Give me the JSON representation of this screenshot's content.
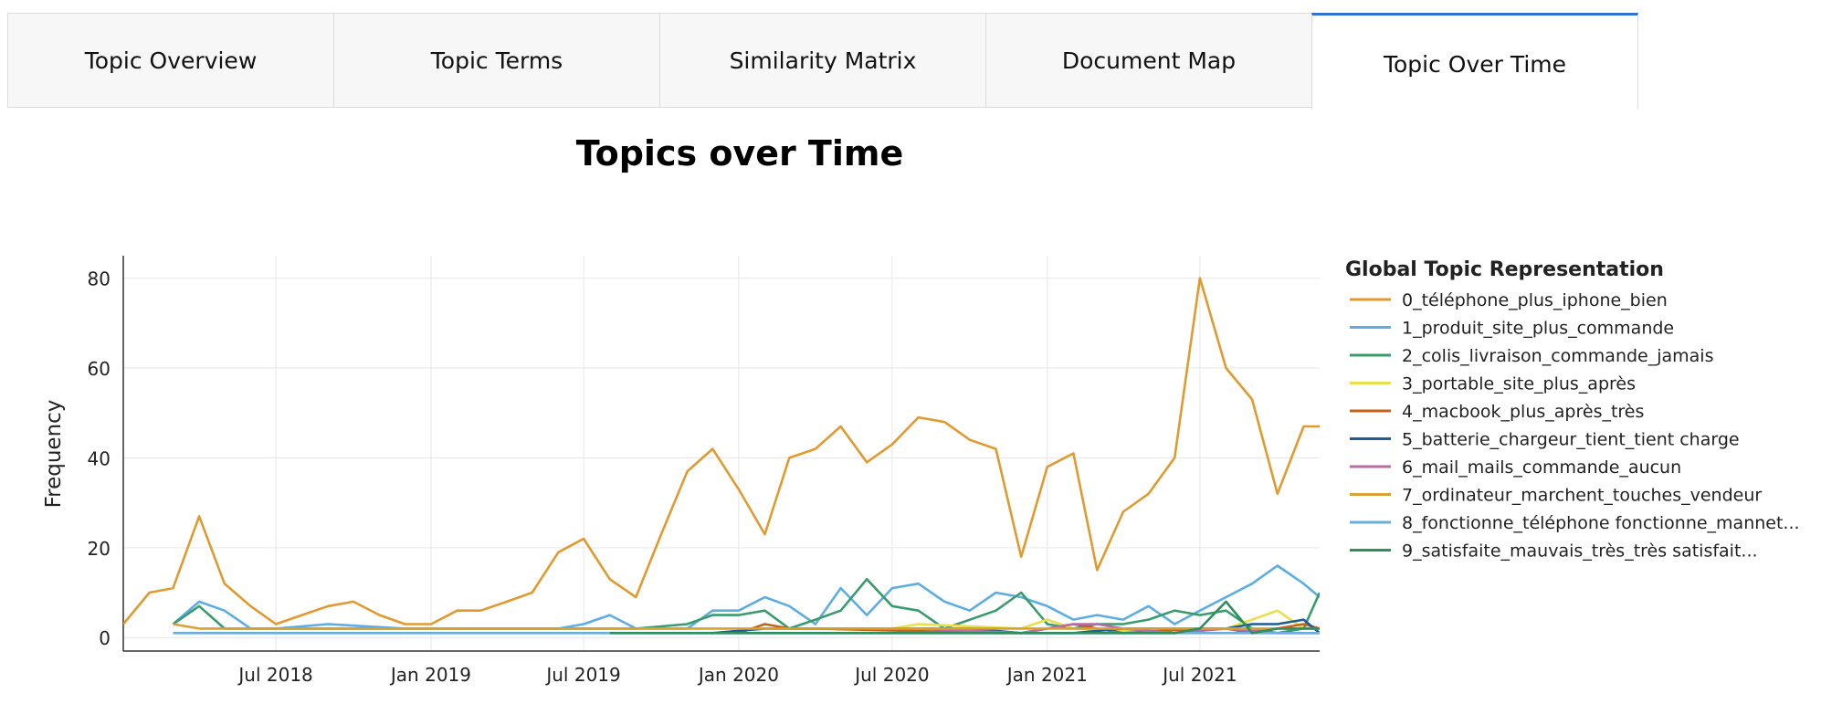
{
  "tabs": [
    {
      "label": "Topic Overview"
    },
    {
      "label": "Topic Terms"
    },
    {
      "label": "Similarity Matrix"
    },
    {
      "label": "Document Map"
    },
    {
      "label": "Topic Over Time"
    }
  ],
  "page_title": "Topics over Time",
  "chart_data": {
    "type": "line",
    "title": "Topics over Time",
    "xlabel": "",
    "ylabel": "Frequency",
    "x_range": [
      "2018-01-01",
      "2021-11-20"
    ],
    "ylim": [
      -3,
      85
    ],
    "grid": true,
    "y_ticks": [
      0,
      20,
      40,
      60,
      80
    ],
    "x_ticks": [
      {
        "date": "2018-07-01",
        "label": "Jul 2018"
      },
      {
        "date": "2019-01-01",
        "label": "Jan 2019"
      },
      {
        "date": "2019-07-01",
        "label": "Jul 2019"
      },
      {
        "date": "2020-01-01",
        "label": "Jan 2020"
      },
      {
        "date": "2020-07-01",
        "label": "Jul 2020"
      },
      {
        "date": "2021-01-01",
        "label": "Jan 2021"
      },
      {
        "date": "2021-07-01",
        "label": "Jul 2021"
      }
    ],
    "legend_title": "Global Topic Representation",
    "legend_position": "right",
    "series": [
      {
        "name": "0_téléphone_plus_iphone_bien",
        "color": "#e09a2f",
        "x": [
          "2018-01-01",
          "2018-02-01",
          "2018-03-01",
          "2018-04-01",
          "2018-05-01",
          "2018-06-01",
          "2018-07-01",
          "2018-08-01",
          "2018-09-01",
          "2018-10-01",
          "2018-11-01",
          "2018-12-01",
          "2019-01-01",
          "2019-02-01",
          "2019-03-01",
          "2019-04-01",
          "2019-05-01",
          "2019-06-01",
          "2019-07-01",
          "2019-08-01",
          "2019-09-01",
          "2019-10-01",
          "2019-11-01",
          "2019-12-01",
          "2020-01-01",
          "2020-02-01",
          "2020-03-01",
          "2020-04-01",
          "2020-05-01",
          "2020-06-01",
          "2020-07-01",
          "2020-08-01",
          "2020-09-01",
          "2020-10-01",
          "2020-11-01",
          "2020-12-01",
          "2021-01-01",
          "2021-02-01",
          "2021-03-01",
          "2021-04-01",
          "2021-05-01",
          "2021-06-01",
          "2021-07-01",
          "2021-08-01",
          "2021-09-01",
          "2021-10-01",
          "2021-11-01",
          "2021-11-20"
        ],
        "y": [
          3,
          10,
          11,
          27,
          12,
          7,
          3,
          5,
          7,
          8,
          5,
          3,
          3,
          6,
          6,
          8,
          10,
          19,
          22,
          13,
          9,
          23,
          37,
          42,
          33,
          23,
          40,
          42,
          47,
          39,
          43,
          49,
          48,
          44,
          42,
          18,
          38,
          41,
          15,
          28,
          32,
          40,
          80,
          60,
          53,
          32,
          47,
          47
        ]
      },
      {
        "name": "1_produit_site_plus_commande",
        "color": "#5dade2",
        "x": [
          "2018-03-01",
          "2018-04-01",
          "2018-05-01",
          "2018-06-01",
          "2018-07-01",
          "2018-09-01",
          "2018-12-01",
          "2019-06-01",
          "2019-07-01",
          "2019-08-01",
          "2019-09-01",
          "2019-10-01",
          "2019-11-01",
          "2019-12-01",
          "2020-01-01",
          "2020-02-01",
          "2020-03-01",
          "2020-04-01",
          "2020-05-01",
          "2020-06-01",
          "2020-07-01",
          "2020-08-01",
          "2020-09-01",
          "2020-10-01",
          "2020-11-01",
          "2020-12-01",
          "2021-01-01",
          "2021-02-01",
          "2021-03-01",
          "2021-04-01",
          "2021-05-01",
          "2021-06-01",
          "2021-07-01",
          "2021-08-01",
          "2021-09-01",
          "2021-10-01",
          "2021-11-01",
          "2021-11-20"
        ],
        "y": [
          3,
          8,
          6,
          2,
          2,
          3,
          2,
          2,
          3,
          5,
          2,
          2,
          2,
          6,
          6,
          9,
          7,
          3,
          11,
          5,
          11,
          12,
          8,
          6,
          10,
          9,
          7,
          4,
          5,
          4,
          7,
          3,
          6,
          9,
          12,
          16,
          12,
          9
        ]
      },
      {
        "name": "2_colis_livraison_commande_jamais",
        "color": "#3a9c6e",
        "x": [
          "2018-03-01",
          "2018-04-01",
          "2018-05-01",
          "2019-09-01",
          "2019-11-01",
          "2019-12-01",
          "2020-01-01",
          "2020-02-01",
          "2020-03-01",
          "2020-04-01",
          "2020-05-01",
          "2020-06-01",
          "2020-07-01",
          "2020-08-01",
          "2020-09-01",
          "2020-11-01",
          "2020-12-01",
          "2021-01-01",
          "2021-02-01",
          "2021-03-01",
          "2021-04-01",
          "2021-05-01",
          "2021-06-01",
          "2021-07-01",
          "2021-08-01",
          "2021-09-01",
          "2021-10-01",
          "2021-11-01",
          "2021-11-20"
        ],
        "y": [
          3,
          7,
          2,
          2,
          3,
          5,
          5,
          6,
          2,
          4,
          6,
          13,
          7,
          6,
          2,
          6,
          10,
          3,
          2,
          3,
          3,
          4,
          6,
          5,
          6,
          2,
          1,
          2,
          10
        ]
      },
      {
        "name": "3_portable_site_plus_après",
        "color": "#e8e04a",
        "x": [
          "2020-06-01",
          "2020-07-01",
          "2020-08-01",
          "2020-12-01",
          "2021-01-01",
          "2021-02-01",
          "2021-06-01",
          "2021-07-01",
          "2021-08-01",
          "2021-09-01",
          "2021-10-01",
          "2021-11-01",
          "2021-11-20"
        ],
        "y": [
          2,
          2,
          3,
          2,
          4,
          2,
          1,
          2,
          2,
          4,
          6,
          2,
          2
        ]
      },
      {
        "name": "4_macbook_plus_après_très",
        "color": "#c4621c",
        "x": [
          "2020-01-01",
          "2020-02-01",
          "2020-03-01",
          "2020-04-01",
          "2020-11-01",
          "2020-12-01",
          "2021-01-01",
          "2021-02-01",
          "2021-03-01",
          "2021-04-01",
          "2021-07-01",
          "2021-08-01",
          "2021-09-01",
          "2021-10-01",
          "2021-11-01",
          "2021-11-20"
        ],
        "y": [
          1,
          3,
          2,
          2,
          1,
          1,
          2,
          3,
          2,
          1,
          2,
          2,
          1,
          2,
          3,
          2
        ]
      },
      {
        "name": "5_batterie_chargeur_tient_tient charge",
        "color": "#1f5c99",
        "x": [
          "2019-12-01",
          "2020-02-01",
          "2020-04-01",
          "2020-06-01",
          "2020-08-01",
          "2020-10-01",
          "2020-12-01",
          "2021-02-01",
          "2021-04-01",
          "2021-06-01",
          "2021-08-01",
          "2021-09-01",
          "2021-10-01",
          "2021-11-01",
          "2021-11-20"
        ],
        "y": [
          1,
          2,
          2,
          2,
          2,
          2,
          1,
          1,
          2,
          2,
          2,
          3,
          3,
          4,
          1
        ]
      },
      {
        "name": "6_mail_mails_commande_aucun",
        "color": "#b86ba8",
        "x": [
          "2020-06-01",
          "2020-08-01",
          "2020-12-01",
          "2021-01-01",
          "2021-02-01",
          "2021-03-01",
          "2021-04-01",
          "2021-06-01",
          "2021-08-01",
          "2021-10-01",
          "2021-11-20"
        ],
        "y": [
          2,
          2,
          1,
          2,
          3,
          3,
          2,
          1,
          2,
          1,
          1
        ]
      },
      {
        "name": "7_ordinateur_marchent_touches_vendeur",
        "color": "#d9a032",
        "x": [
          "2018-03-01",
          "2018-04-01",
          "2018-06-01",
          "2018-09-01",
          "2018-12-01",
          "2019-03-01",
          "2019-06-01",
          "2019-09-01",
          "2019-12-01",
          "2020-03-01",
          "2020-06-01",
          "2020-09-01",
          "2020-12-01",
          "2021-03-01",
          "2021-06-01",
          "2021-09-01",
          "2021-11-20"
        ],
        "y": [
          3,
          2,
          2,
          2,
          2,
          2,
          2,
          2,
          2,
          2,
          2,
          2,
          2,
          2,
          2,
          2,
          2
        ]
      },
      {
        "name": "8_fonctionne_téléphone fonctionne_mannet...",
        "color": "#6aaedd",
        "x": [
          "2018-03-01",
          "2018-06-01",
          "2018-09-01",
          "2018-12-01",
          "2019-03-01",
          "2019-06-01",
          "2019-09-01",
          "2019-12-01",
          "2020-03-01",
          "2020-06-01",
          "2020-09-01",
          "2020-12-01",
          "2021-03-01",
          "2021-06-01",
          "2021-09-01",
          "2021-11-20"
        ],
        "y": [
          1,
          1,
          1,
          1,
          1,
          1,
          1,
          1,
          1,
          1,
          1,
          1,
          1,
          1,
          1,
          1
        ]
      },
      {
        "name": "9_satisfaite_mauvais_très_très satisfait...",
        "color": "#2f8f5b",
        "x": [
          "2019-08-01",
          "2019-10-01",
          "2019-12-01",
          "2020-02-01",
          "2020-04-01",
          "2020-06-01",
          "2020-08-01",
          "2020-10-01",
          "2020-12-01",
          "2021-02-01",
          "2021-04-01",
          "2021-06-01",
          "2021-07-01",
          "2021-08-01",
          "2021-09-01",
          "2021-10-01",
          "2021-11-20"
        ],
        "y": [
          1,
          1,
          1,
          1,
          1,
          1,
          1,
          1,
          1,
          1,
          1,
          1,
          2,
          8,
          1,
          2,
          2
        ]
      }
    ]
  }
}
